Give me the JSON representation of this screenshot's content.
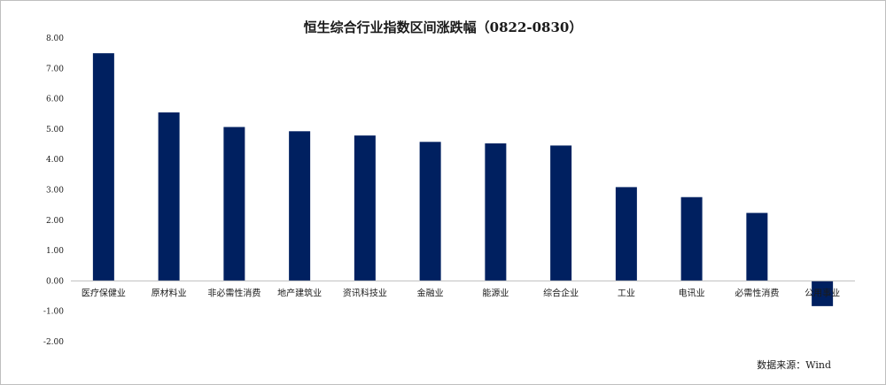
{
  "chart_data": {
    "type": "bar",
    "title": "恒生综合行业指数区间涨跌幅（0822-0830）",
    "source": "数据来源：Wind",
    "categories": [
      "医疗保健业",
      "原材料业",
      "非必需性消费",
      "地产建筑业",
      "资讯科技业",
      "金融业",
      "能源业",
      "综合企业",
      "工业",
      "电讯业",
      "必需性消费",
      "公用事业"
    ],
    "values": [
      7.5,
      5.55,
      5.07,
      4.93,
      4.79,
      4.58,
      4.53,
      4.46,
      3.09,
      2.76,
      2.24,
      -0.83
    ],
    "yticks": [
      "8.00",
      "7.00",
      "6.00",
      "5.00",
      "4.00",
      "3.00",
      "2.00",
      "1.00",
      "0.00",
      "-1.00",
      "-2.00"
    ],
    "ylim": [
      -2,
      8
    ],
    "xlabel": "",
    "ylabel": "",
    "bar_color": "#002060",
    "grid": false,
    "legend": "none"
  }
}
